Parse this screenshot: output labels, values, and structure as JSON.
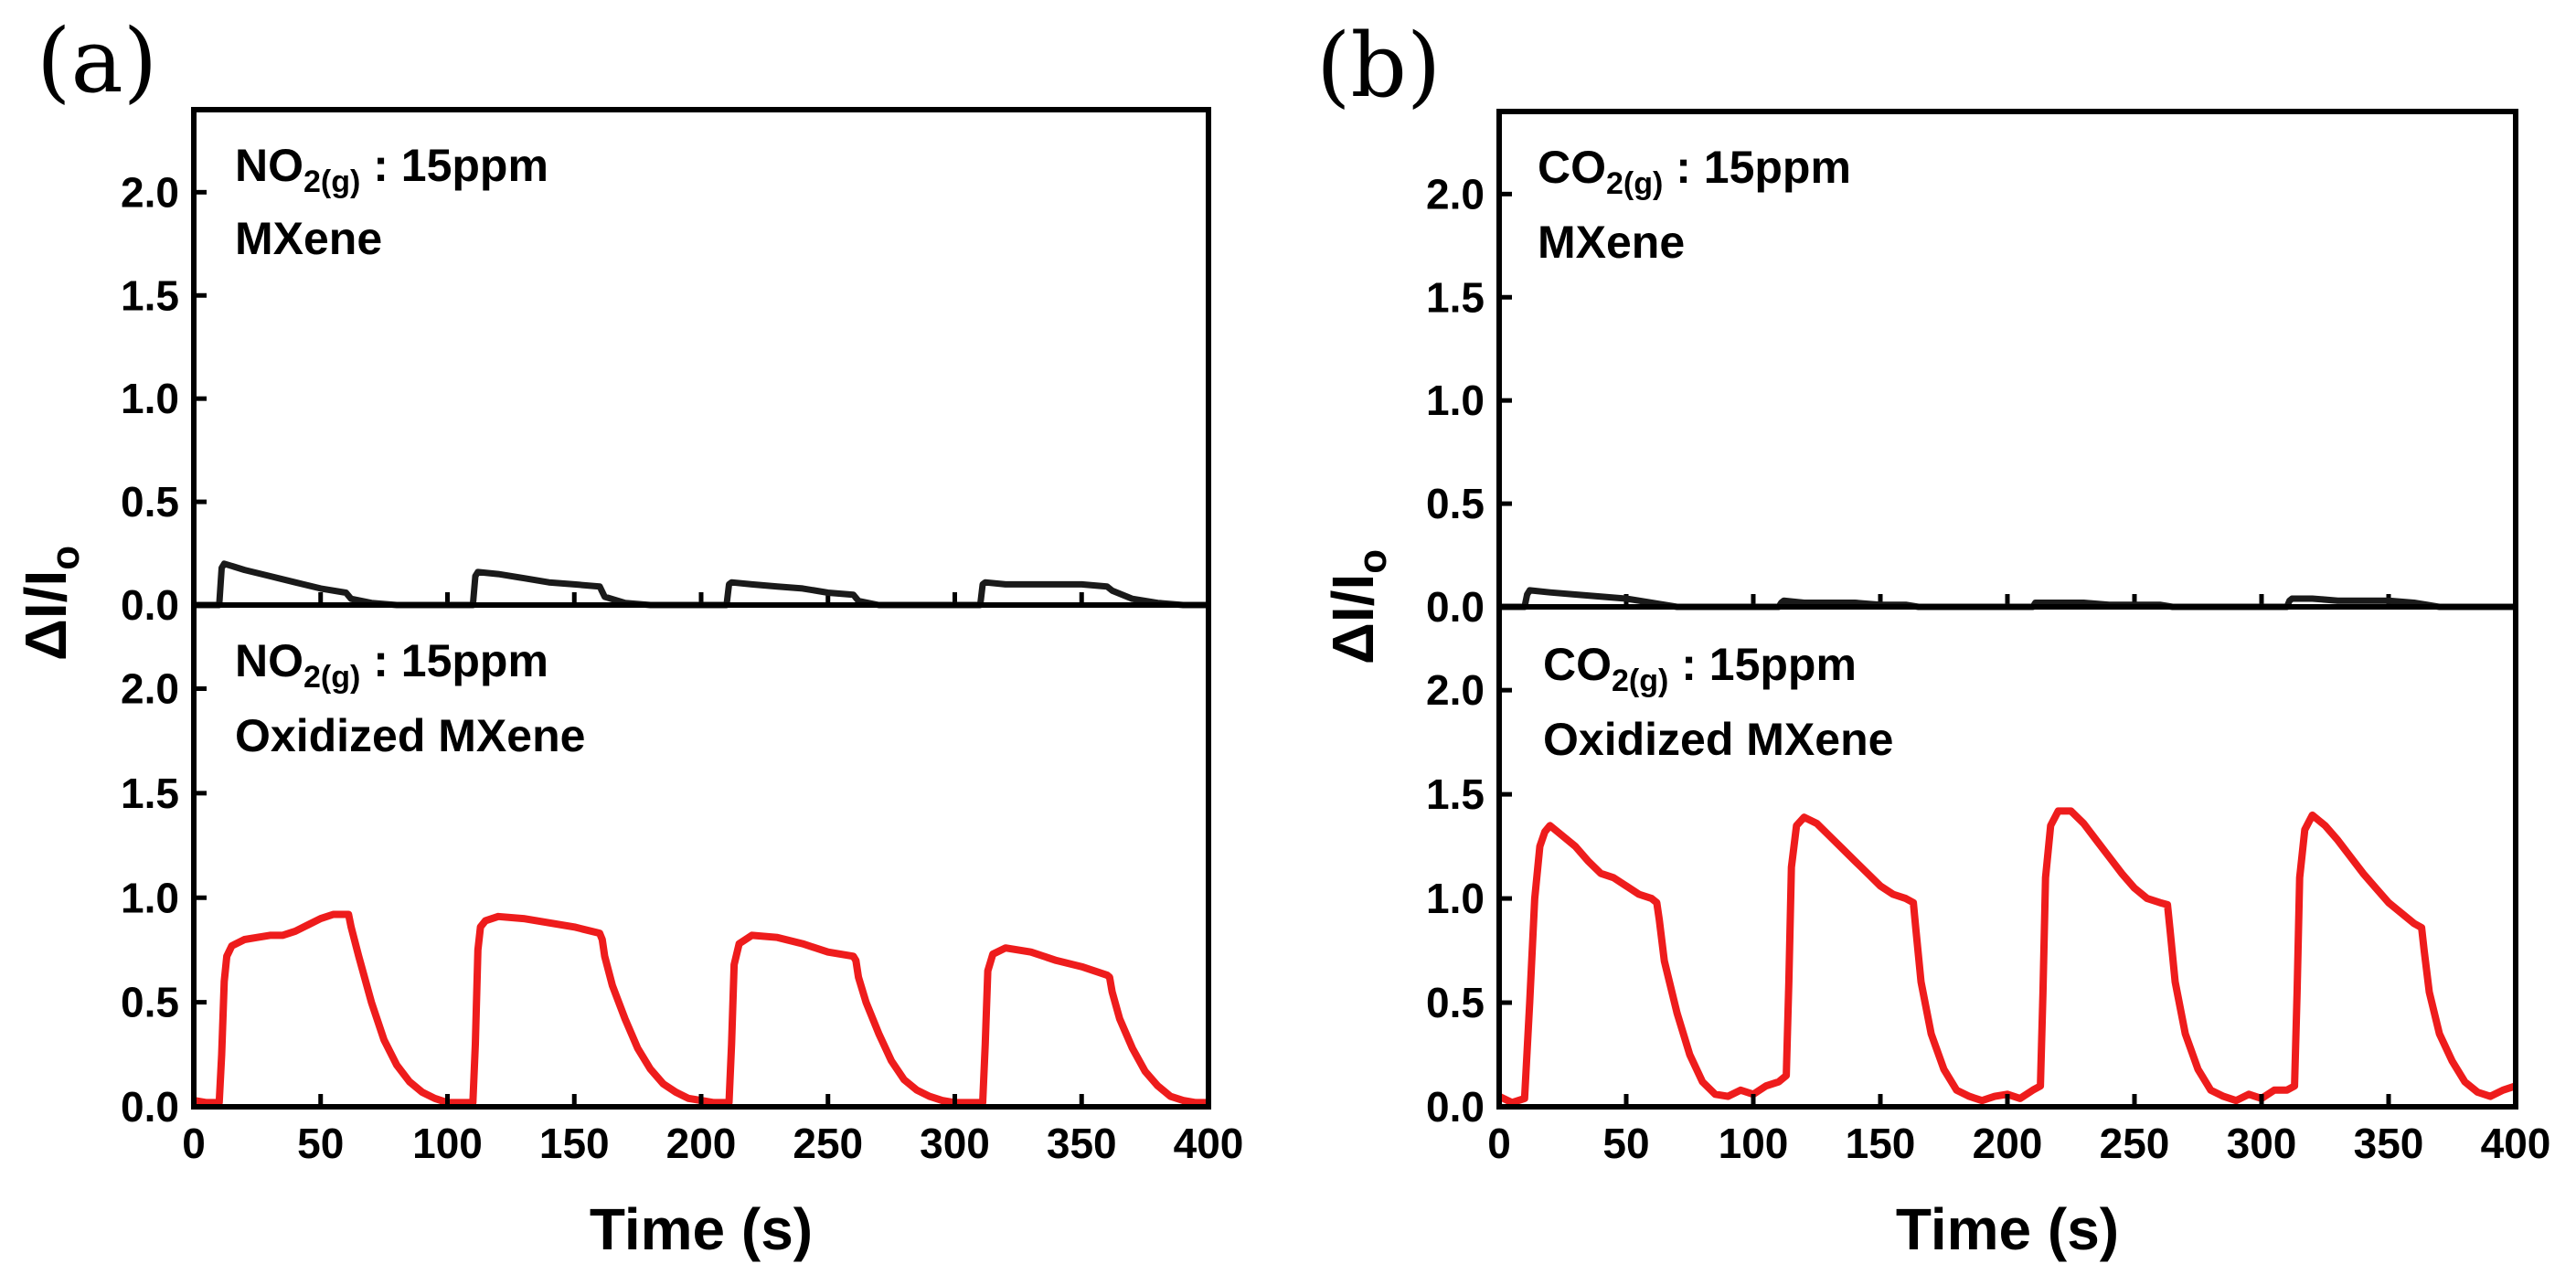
{
  "figure": {
    "panel_labels": [
      "(a)",
      "(b)"
    ],
    "y_label_main": "ΔI/I",
    "y_label_sub": "o"
  },
  "chart_data": [
    {
      "type": "line",
      "panel": "(a)",
      "subplot": "top",
      "title": "NO2(g) : 15ppm MXene",
      "annotation": {
        "species": "NO",
        "species_sub": "2(g)",
        "conc": " : 15ppm",
        "material": "MXene"
      },
      "xlabel": "Time (s)",
      "ylabel": "ΔI/Io",
      "xlim": [
        0,
        400
      ],
      "ylim": [
        0,
        2.4
      ],
      "xticks": [
        0,
        50,
        100,
        150,
        200,
        250,
        300,
        350,
        400
      ],
      "yticks": [
        0.0,
        0.5,
        1.0,
        1.5,
        2.0
      ],
      "series": [
        {
          "name": "MXene",
          "color": "#1a1a1a",
          "x": [
            0,
            10,
            11,
            12,
            20,
            30,
            40,
            50,
            60,
            62,
            70,
            80,
            90,
            100,
            108,
            110,
            111,
            112,
            120,
            130,
            140,
            150,
            160,
            162,
            170,
            180,
            190,
            200,
            208,
            210,
            211,
            212,
            220,
            230,
            240,
            250,
            260,
            262,
            270,
            280,
            290,
            300,
            308,
            310,
            311,
            312,
            320,
            330,
            340,
            350,
            360,
            362,
            370,
            380,
            390,
            400
          ],
          "y": [
            0.0,
            0.0,
            0.18,
            0.2,
            0.17,
            0.14,
            0.11,
            0.08,
            0.06,
            0.03,
            0.01,
            0.0,
            0.0,
            0.0,
            0.0,
            0.0,
            0.14,
            0.16,
            0.15,
            0.13,
            0.11,
            0.1,
            0.09,
            0.04,
            0.01,
            0.0,
            0.0,
            0.0,
            0.0,
            0.0,
            0.1,
            0.11,
            0.1,
            0.09,
            0.08,
            0.06,
            0.05,
            0.02,
            0.0,
            0.0,
            0.0,
            0.0,
            0.0,
            0.0,
            0.1,
            0.11,
            0.1,
            0.1,
            0.1,
            0.1,
            0.09,
            0.07,
            0.03,
            0.01,
            0.0,
            0.0
          ]
        }
      ]
    },
    {
      "type": "line",
      "panel": "(a)",
      "subplot": "bottom",
      "title": "NO2(g) : 15ppm Oxidized MXene",
      "annotation": {
        "species": "NO",
        "species_sub": "2(g)",
        "conc": " : 15ppm",
        "material": "Oxidized MXene"
      },
      "xlabel": "Time (s)",
      "ylabel": "ΔI/Io",
      "xlim": [
        0,
        400
      ],
      "ylim": [
        0,
        2.4
      ],
      "xticks": [
        0,
        50,
        100,
        150,
        200,
        250,
        300,
        350,
        400
      ],
      "yticks": [
        0.0,
        0.5,
        1.0,
        1.5,
        2.0
      ],
      "series": [
        {
          "name": "Oxidized MXene",
          "color": "#ee1c1c",
          "x": [
            0,
            5,
            10,
            11,
            12,
            13,
            15,
            20,
            25,
            30,
            35,
            40,
            45,
            50,
            55,
            60,
            61,
            62,
            65,
            70,
            75,
            80,
            85,
            90,
            95,
            100,
            105,
            108,
            110,
            111,
            112,
            113,
            115,
            120,
            130,
            140,
            150,
            160,
            161,
            162,
            165,
            170,
            175,
            180,
            185,
            190,
            195,
            200,
            205,
            210,
            211,
            212,
            213,
            215,
            220,
            230,
            240,
            250,
            260,
            261,
            262,
            265,
            270,
            275,
            280,
            285,
            290,
            295,
            300,
            305,
            310,
            311,
            312,
            313,
            315,
            320,
            330,
            340,
            350,
            360,
            361,
            362,
            365,
            370,
            375,
            380,
            385,
            390,
            395,
            400
          ],
          "y": [
            0.03,
            0.02,
            0.02,
            0.25,
            0.6,
            0.72,
            0.77,
            0.8,
            0.81,
            0.82,
            0.82,
            0.84,
            0.87,
            0.9,
            0.92,
            0.92,
            0.92,
            0.86,
            0.72,
            0.5,
            0.32,
            0.2,
            0.12,
            0.07,
            0.04,
            0.02,
            0.02,
            0.02,
            0.02,
            0.3,
            0.75,
            0.86,
            0.89,
            0.91,
            0.9,
            0.88,
            0.86,
            0.83,
            0.8,
            0.72,
            0.58,
            0.42,
            0.28,
            0.18,
            0.11,
            0.07,
            0.04,
            0.03,
            0.02,
            0.02,
            0.02,
            0.3,
            0.68,
            0.78,
            0.82,
            0.81,
            0.78,
            0.74,
            0.72,
            0.7,
            0.62,
            0.5,
            0.35,
            0.22,
            0.13,
            0.08,
            0.05,
            0.03,
            0.02,
            0.02,
            0.02,
            0.02,
            0.3,
            0.65,
            0.73,
            0.76,
            0.74,
            0.7,
            0.67,
            0.63,
            0.62,
            0.55,
            0.42,
            0.28,
            0.17,
            0.1,
            0.05,
            0.03,
            0.02,
            0.02
          ]
        }
      ]
    },
    {
      "type": "line",
      "panel": "(b)",
      "subplot": "top",
      "title": "CO2(g) : 15ppm MXene",
      "annotation": {
        "species": "CO",
        "species_sub": "2(g)",
        "conc": " : 15ppm",
        "material": "MXene"
      },
      "xlabel": "Time (s)",
      "ylabel": "ΔI/Io",
      "xlim": [
        0,
        400
      ],
      "ylim": [
        0,
        2.4
      ],
      "xticks": [
        0,
        50,
        100,
        150,
        200,
        250,
        300,
        350,
        400
      ],
      "yticks": [
        0.0,
        0.5,
        1.0,
        1.5,
        2.0
      ],
      "series": [
        {
          "name": "MXene",
          "color": "#1a1a1a",
          "x": [
            0,
            10,
            11,
            12,
            20,
            30,
            40,
            50,
            55,
            60,
            65,
            70,
            90,
            100,
            105,
            110,
            111,
            112,
            120,
            130,
            140,
            150,
            160,
            165,
            170,
            190,
            200,
            205,
            210,
            211,
            212,
            220,
            230,
            240,
            250,
            260,
            265,
            270,
            290,
            300,
            305,
            310,
            311,
            312,
            320,
            330,
            340,
            350,
            360,
            365,
            370,
            390,
            400
          ],
          "y": [
            0.0,
            0.0,
            0.06,
            0.08,
            0.07,
            0.06,
            0.05,
            0.04,
            0.03,
            0.02,
            0.01,
            0.0,
            0.0,
            0.0,
            0.0,
            0.0,
            0.02,
            0.03,
            0.02,
            0.02,
            0.02,
            0.01,
            0.01,
            0.0,
            0.0,
            0.0,
            0.0,
            0.0,
            0.0,
            0.02,
            0.02,
            0.02,
            0.02,
            0.01,
            0.01,
            0.01,
            0.0,
            0.0,
            0.0,
            0.0,
            0.0,
            0.0,
            0.03,
            0.04,
            0.04,
            0.03,
            0.03,
            0.03,
            0.02,
            0.01,
            0.0,
            0.0,
            0.0
          ]
        }
      ]
    },
    {
      "type": "line",
      "panel": "(b)",
      "subplot": "bottom",
      "title": "CO2(g) : 15ppm Oxidized MXene",
      "annotation": {
        "species": "CO",
        "species_sub": "2(g)",
        "conc": " : 15ppm",
        "material": "Oxidized MXene"
      },
      "xlabel": "Time (s)",
      "ylabel": "ΔI/Io",
      "xlim": [
        0,
        400
      ],
      "ylim": [
        0,
        2.4
      ],
      "xticks": [
        0,
        50,
        100,
        150,
        200,
        250,
        300,
        350,
        400
      ],
      "yticks": [
        0.0,
        0.5,
        1.0,
        1.5,
        2.0
      ],
      "series": [
        {
          "name": "Oxidized MXene",
          "color": "#ee1c1c",
          "x": [
            0,
            5,
            10,
            12,
            14,
            16,
            18,
            20,
            25,
            30,
            35,
            40,
            45,
            50,
            55,
            60,
            62,
            63,
            65,
            70,
            75,
            80,
            85,
            90,
            95,
            100,
            105,
            110,
            113,
            114,
            115,
            117,
            120,
            125,
            130,
            135,
            140,
            145,
            150,
            155,
            160,
            163,
            164,
            166,
            170,
            175,
            180,
            185,
            190,
            195,
            200,
            205,
            210,
            213,
            214,
            215,
            217,
            220,
            225,
            230,
            235,
            240,
            245,
            250,
            255,
            260,
            263,
            264,
            266,
            270,
            275,
            280,
            285,
            290,
            295,
            300,
            305,
            310,
            313,
            314,
            315,
            317,
            320,
            325,
            330,
            335,
            340,
            345,
            350,
            355,
            360,
            363,
            364,
            366,
            370,
            375,
            380,
            385,
            390,
            395,
            400
          ],
          "y": [
            0.05,
            0.02,
            0.04,
            0.5,
            1.0,
            1.25,
            1.32,
            1.35,
            1.3,
            1.25,
            1.18,
            1.12,
            1.1,
            1.06,
            1.02,
            1.0,
            0.98,
            0.9,
            0.7,
            0.45,
            0.25,
            0.12,
            0.06,
            0.05,
            0.08,
            0.06,
            0.1,
            0.12,
            0.15,
            0.6,
            1.15,
            1.35,
            1.39,
            1.36,
            1.3,
            1.24,
            1.18,
            1.12,
            1.06,
            1.02,
            1.0,
            0.98,
            0.85,
            0.6,
            0.35,
            0.18,
            0.08,
            0.05,
            0.03,
            0.05,
            0.06,
            0.04,
            0.08,
            0.1,
            0.55,
            1.1,
            1.35,
            1.42,
            1.42,
            1.36,
            1.28,
            1.2,
            1.12,
            1.05,
            1.0,
            0.98,
            0.97,
            0.85,
            0.6,
            0.35,
            0.18,
            0.08,
            0.05,
            0.03,
            0.06,
            0.04,
            0.08,
            0.08,
            0.1,
            0.55,
            1.1,
            1.33,
            1.4,
            1.35,
            1.28,
            1.2,
            1.12,
            1.05,
            0.98,
            0.93,
            0.88,
            0.86,
            0.75,
            0.55,
            0.35,
            0.22,
            0.12,
            0.07,
            0.05,
            0.08,
            0.1
          ]
        }
      ]
    }
  ]
}
